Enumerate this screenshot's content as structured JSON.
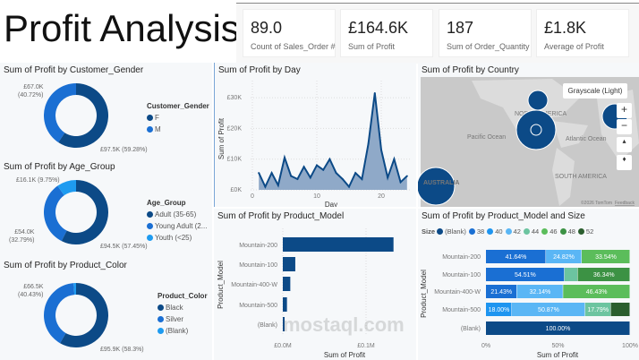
{
  "title": "Profit Analysis",
  "kpis": [
    {
      "value": "89.0",
      "label": "Count of Sales_Order #"
    },
    {
      "value": "£164.6K",
      "label": "Sum of Profit"
    },
    {
      "value": "187",
      "label": "Sum of Order_Quantity"
    },
    {
      "value": "£1.8K",
      "label": "Average of Profit"
    }
  ],
  "colors": {
    "dark": "#0c4a87",
    "mid": "#1a6fd3",
    "light": "#1e9bf0"
  },
  "donuts": [
    {
      "title": "Sum of Profit by Customer_Gender",
      "legend_title": "Customer_Gender",
      "slices": [
        {
          "name": "F",
          "value": 97.5,
          "label": "£97.5K (59.28%)",
          "pct": 59.28
        },
        {
          "name": "M",
          "value": 67.0,
          "label": "£67.0K (40.72%)",
          "pct": 40.72
        }
      ]
    },
    {
      "title": "Sum of Profit by Age_Group",
      "legend_title": "Age_Group",
      "slices": [
        {
          "name": "Adult (35-65)",
          "value": 94.5,
          "label": "£94.5K (57.45%)",
          "pct": 57.45
        },
        {
          "name": "Young Adult (2...",
          "value": 54.0,
          "label": "£54.0K (32.79%)",
          "pct": 32.79
        },
        {
          "name": "Youth (<25)",
          "value": 16.1,
          "label": "£16.1K (9.75%)",
          "pct": 9.75
        }
      ]
    },
    {
      "title": "Sum of Profit by Product_Color",
      "legend_title": "Product_Color",
      "slices": [
        {
          "name": "Black",
          "value": 95.9,
          "label": "£95.9K (58.3%)",
          "pct": 58.3
        },
        {
          "name": "Silver",
          "value": 66.5,
          "label": "£66.5K (40.43%)",
          "pct": 40.43
        },
        {
          "name": "(Blank)",
          "value": 2.1,
          "label": "",
          "pct": 1.27
        }
      ]
    }
  ],
  "chart_data": [
    {
      "type": "area",
      "title": "Sum of Profit by Day",
      "xlabel": "Day",
      "ylabel": "Sum of Profit",
      "x": [
        1,
        2,
        3,
        4,
        5,
        6,
        7,
        8,
        9,
        10,
        11,
        12,
        13,
        14,
        15,
        16,
        17,
        18,
        19,
        20,
        21,
        22,
        23,
        24
      ],
      "values": [
        5.5,
        1,
        5.5,
        1.5,
        10.5,
        4.5,
        3.5,
        7.5,
        4,
        8,
        6.5,
        10,
        5.5,
        3.5,
        1,
        5.5,
        3.5,
        15,
        31.5,
        13,
        4,
        10,
        2.5,
        4.5
      ],
      "unit": "K",
      "xticks": [
        "0",
        "10",
        "20"
      ],
      "yticks": [
        "£0K",
        "£10K",
        "£20K",
        "£30K"
      ],
      "ylim": [
        0,
        30
      ],
      "grid": true
    },
    {
      "type": "bar",
      "title": "Sum of Profit by Product_Model",
      "xlabel": "Sum of Profit",
      "ylabel": "Product_Model",
      "categories": [
        "Mountain-200",
        "Mountain-100",
        "Mountain-400-W",
        "Mountain-500",
        "(Blank)"
      ],
      "values": [
        0.133,
        0.015,
        0.009,
        0.005,
        0.0015
      ],
      "unit": "M",
      "xticks": [
        "£0.0M",
        "£0.1M"
      ]
    },
    {
      "type": "bar",
      "stacked": "100%",
      "title": "Sum of Profit by Product_Model and Size",
      "xlabel": "Sum of Profit",
      "ylabel": "Product_Model",
      "legend_title": "Size",
      "sizes": [
        {
          "name": "(Blank)",
          "color": "#0c4a87"
        },
        {
          "name": "38",
          "color": "#1a6fd3"
        },
        {
          "name": "40",
          "color": "#1e95f0"
        },
        {
          "name": "42",
          "color": "#5ab6f5"
        },
        {
          "name": "44",
          "color": "#6cc4a0"
        },
        {
          "name": "46",
          "color": "#5bbd5b"
        },
        {
          "name": "48",
          "color": "#3c9244"
        },
        {
          "name": "52",
          "color": "#2b5e2e"
        }
      ],
      "categories": [
        "Mountain-200",
        "Mountain-100",
        "Mountain-400-W",
        "Mountain-500",
        "(Blank)"
      ],
      "rows": [
        [
          {
            "size": "38",
            "pct": 41.64,
            "label": "41.64%"
          },
          {
            "size": "42",
            "pct": 24.82,
            "label": "24.82%"
          },
          {
            "size": "46",
            "pct": 33.54,
            "label": "33.54%"
          }
        ],
        [
          {
            "size": "38",
            "pct": 54.51,
            "label": "54.51%"
          },
          {
            "size": "44",
            "pct": 9.15,
            "label": ""
          },
          {
            "size": "48",
            "pct": 36.34,
            "label": "36.34%"
          }
        ],
        [
          {
            "size": "38",
            "pct": 21.43,
            "label": "21.43%"
          },
          {
            "size": "42",
            "pct": 32.14,
            "label": "32.14%"
          },
          {
            "size": "46",
            "pct": 46.43,
            "label": "46.43%"
          }
        ],
        [
          {
            "size": "40",
            "pct": 18.0,
            "label": "18.00%"
          },
          {
            "size": "42",
            "pct": 50.87,
            "label": "50.87%"
          },
          {
            "size": "44",
            "pct": 17.79,
            "label": "17.79%"
          },
          {
            "size": "52",
            "pct": 13.34,
            "label": ""
          }
        ],
        [
          {
            "size": "(Blank)",
            "pct": 100,
            "label": "100.00%"
          }
        ]
      ],
      "xticks": [
        "0%",
        "50%",
        "100%"
      ]
    }
  ],
  "map": {
    "title": "Sum of Profit by Country",
    "style_label": "Grayscale (Light)",
    "labels": [
      "Pacific Ocean",
      "Atlantic Ocean",
      "NORTH AMERICA",
      "SOUTH AMERICA",
      "AUSTRALIA"
    ],
    "attribution": "©2026 TomTom",
    "feedback": "Feedback",
    "zoom_in": "+",
    "zoom_out": "−"
  },
  "watermark": "مستقل mostaql.com"
}
